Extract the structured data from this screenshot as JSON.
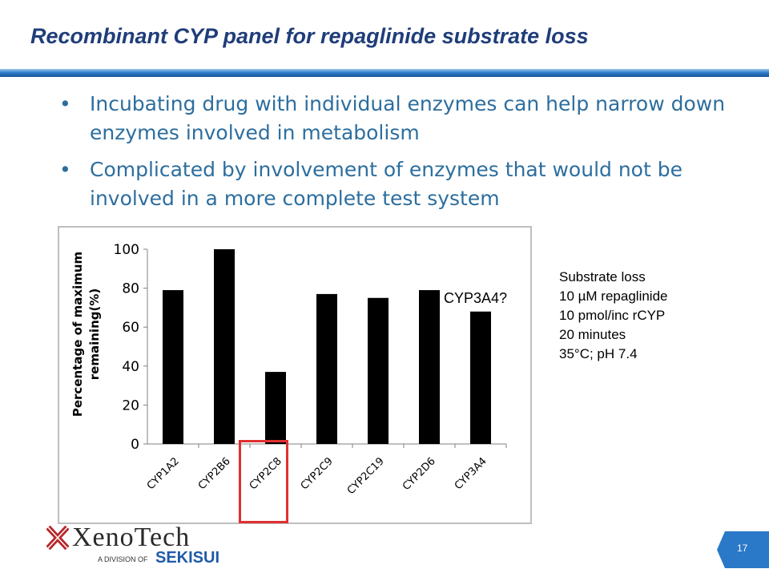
{
  "slide": {
    "title": "Recombinant CYP panel for repaglinide substrate loss",
    "bullets": [
      "Incubating drug with individual enzymes can help narrow down enzymes involved in metabolism",
      "Complicated by involvement of enzymes that would not be involved in a more complete test system"
    ],
    "bullet_glyph": "•",
    "conditions": [
      "Substrate loss",
      "10 µM repaglinide",
      "10 pmol/inc rCYP",
      "20 minutes",
      "35°C; pH 7.4"
    ],
    "annotation": "CYP3A4?",
    "page_number": "17",
    "logo": {
      "name": "XenoTech",
      "division": "A DIVISION OF",
      "brand": "SEKISUI"
    }
  },
  "colors": {
    "title": "#1f3d7a",
    "bullet_text": "#2d6e9e",
    "accent_bar": "#2a78c8",
    "highlight": "#e03030",
    "bars": "#000000",
    "logo_red": "#b8262a"
  },
  "chart_data": {
    "type": "bar",
    "categories": [
      "CYP1A2",
      "CYP2B6",
      "CYP2C8",
      "CYP2C9",
      "CYP2C19",
      "CYP2D6",
      "CYP3A4"
    ],
    "values": [
      79,
      100,
      37,
      77,
      75,
      79,
      68
    ],
    "ylabel": "Percentage of maximum remaining(%)",
    "ylabel_lines": [
      "Percentage of maximum",
      "remaining(%)"
    ],
    "ylim": [
      0,
      100
    ],
    "yticks": [
      0,
      20,
      40,
      60,
      80,
      100
    ],
    "grid": false,
    "legend": "none"
  }
}
